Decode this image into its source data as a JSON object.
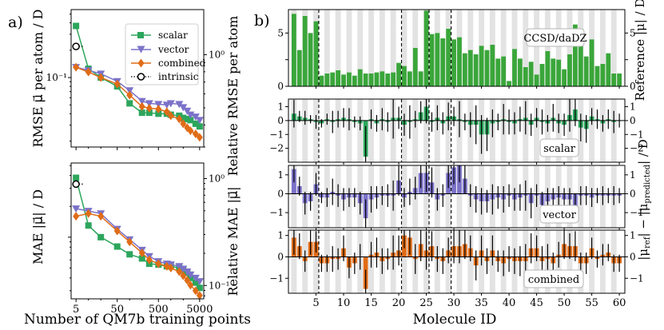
{
  "panel_labels": {
    "a": "a)",
    "b": "b)"
  },
  "colors": {
    "scalar": "#2ca65c",
    "vector": "#7b72c9",
    "combined": "#e06c17",
    "reference": "#3aa63a",
    "stripe": "#e3e3e3",
    "errbar": "#000000"
  },
  "chart_data": [
    {
      "id": "a-top",
      "type": "line",
      "title": "",
      "xlabel": "",
      "ylabel": "RMSE μ⃗ per atom / D",
      "ylabel_right": "Relative RMSE per atom",
      "x_scale": "log",
      "y_scale": "log",
      "xlim": [
        3.8,
        6300
      ],
      "ylim": [
        0.0172,
        0.56
      ],
      "right_ylim": [
        0.3,
        1.8
      ],
      "right_ticks": [
        {
          "v": 1.0,
          "label": "10⁰"
        }
      ],
      "left_ticks": [
        {
          "v": 0.1,
          "label": "10⁻¹"
        }
      ],
      "legend_position": "top-right",
      "series": [
        {
          "name": "scalar",
          "key": "scalar",
          "marker": "square",
          "x": [
            5,
            10,
            20,
            50,
            100,
            200,
            300,
            500,
            800,
            1000,
            1600,
            2000,
            2500,
            3000,
            4000,
            5000
          ],
          "y": [
            0.37,
            0.125,
            0.1,
            0.08,
            0.052,
            0.041,
            0.041,
            0.04,
            0.04,
            0.039,
            0.038,
            0.036,
            0.035,
            0.034,
            0.031,
            0.029
          ]
        },
        {
          "name": "vector",
          "key": "vector",
          "marker": "triangle-down",
          "x": [
            5,
            10,
            20,
            50,
            100,
            200,
            300,
            500,
            800,
            1000,
            1600,
            2000,
            2500,
            3000,
            4000,
            5000
          ],
          "y": [
            0.13,
            0.12,
            0.11,
            0.091,
            0.072,
            0.055,
            0.052,
            0.051,
            0.05,
            0.052,
            0.051,
            0.047,
            0.043,
            0.039,
            0.037,
            0.034
          ]
        },
        {
          "name": "combined",
          "key": "combined",
          "marker": "diamond",
          "x": [
            5,
            10,
            20,
            50,
            100,
            200,
            300,
            500,
            800,
            1000,
            1600,
            2000,
            2500,
            3000,
            4000,
            5000
          ],
          "y": [
            0.13,
            0.115,
            0.1,
            0.085,
            0.064,
            0.048,
            0.046,
            0.045,
            0.042,
            0.038,
            0.035,
            0.031,
            0.028,
            0.026,
            0.024,
            0.022
          ]
        },
        {
          "name": "intrinsic",
          "key": "intrinsic",
          "marker": "circle-open",
          "x": [
            5
          ],
          "y": [
            0.22
          ]
        }
      ]
    },
    {
      "id": "a-bottom",
      "type": "line",
      "title": "",
      "xlabel": "Number of QM7b training points",
      "ylabel": "MAE |μ⃗| / D",
      "ylabel_right": "Relative MAE |μ⃗|",
      "x_scale": "log",
      "y_scale": "log",
      "xlim": [
        3.8,
        6300
      ],
      "ylim": [
        0.025,
        0.53
      ],
      "right_ylim": [
        0.075,
        1.4
      ],
      "right_ticks": [
        {
          "v": 1.0,
          "label": "10⁰"
        },
        {
          "v": 0.1,
          "label": "10⁻¹"
        }
      ],
      "x_ticks": [
        5,
        50,
        500,
        5000
      ],
      "x_ticklabels": [
        "5",
        "50",
        "500",
        "5000"
      ],
      "series": [
        {
          "name": "scalar",
          "key": "scalar",
          "marker": "square",
          "x": [
            5,
            10,
            20,
            50,
            100,
            200,
            300,
            500,
            800,
            1000,
            1600,
            2000,
            2500,
            3000,
            4000,
            5000
          ],
          "y": [
            0.38,
            0.13,
            0.1,
            0.081,
            0.068,
            0.062,
            0.055,
            0.054,
            0.052,
            0.052,
            0.05,
            0.048,
            0.045,
            0.04,
            0.036,
            0.032
          ]
        },
        {
          "name": "vector",
          "key": "vector",
          "marker": "triangle-down",
          "x": [
            5,
            10,
            20,
            50,
            100,
            200,
            300,
            500,
            800,
            1000,
            1600,
            2000,
            2500,
            3000,
            4000,
            5000
          ],
          "y": [
            0.19,
            0.18,
            0.17,
            0.12,
            0.095,
            0.075,
            0.065,
            0.058,
            0.055,
            0.054,
            0.052,
            0.049,
            0.046,
            0.043,
            0.04,
            0.037
          ]
        },
        {
          "name": "combined",
          "key": "combined",
          "marker": "diamond",
          "x": [
            5,
            10,
            20,
            50,
            100,
            200,
            300,
            500,
            800,
            1000,
            1600,
            2000,
            2500,
            3000,
            4000,
            5000
          ],
          "y": [
            0.16,
            0.17,
            0.16,
            0.115,
            0.09,
            0.07,
            0.06,
            0.055,
            0.052,
            0.05,
            0.046,
            0.042,
            0.038,
            0.034,
            0.03,
            0.027
          ]
        },
        {
          "name": "intrinsic",
          "key": "intrinsic",
          "marker": "circle-open",
          "x": [
            5
          ],
          "y": [
            0.33
          ]
        }
      ]
    },
    {
      "id": "b-reference",
      "type": "bar",
      "annotation": "CCSD/daDZ",
      "ylabel": "Reference |μ| / D",
      "ylim": [
        0,
        7.2
      ],
      "yticks": [
        0,
        2.5,
        5
      ],
      "yticklabels": [
        "0",
        "5"
      ],
      "yticks_labeled": [
        0,
        5
      ],
      "x": "molecule 1..60",
      "values": [
        6.8,
        3.4,
        6.6,
        5.0,
        6.1,
        1.0,
        1.2,
        1.3,
        1.5,
        1.1,
        1.3,
        1.0,
        1.6,
        1.2,
        1.2,
        1.3,
        1.4,
        1.2,
        1.3,
        2.2,
        1.9,
        1.4,
        3.6,
        1.4,
        7.1,
        4.9,
        5.0,
        4.5,
        5.4,
        4.4,
        4.6,
        3.1,
        3.4,
        3.0,
        3.8,
        3.4,
        3.9,
        2.6,
        2.8,
        0.5,
        3.5,
        2.6,
        1.8,
        2.3,
        1.1,
        2.1,
        3.3,
        2.6,
        2.5,
        1.6,
        3.0,
        5.8,
        5.4,
        2.8,
        4.4,
        1.9,
        2.1,
        3.1,
        1.2,
        1.2
      ]
    },
    {
      "id": "b-scalar",
      "type": "bar",
      "annotation": "scalar",
      "ylim": [
        -3.0,
        1.55
      ],
      "yticks": [
        -2,
        -1,
        0,
        1
      ],
      "yticklabels": [
        "−2",
        "−1",
        "0",
        "1"
      ],
      "values": [
        0.5,
        0.3,
        0.2,
        0.1,
        -0.1,
        -0.2,
        0.1,
        -0.1,
        0.1,
        0.2,
        0.1,
        -0.1,
        -0.2,
        -2.6,
        0.1,
        -0.2,
        0.1,
        -0.1,
        0.2,
        0.2,
        -0.3,
        -0.1,
        0.1,
        0.6,
        1.0,
        -0.1,
        0.2,
        -0.2,
        0.3,
        0.3,
        0.1,
        -0.1,
        -0.3,
        -0.3,
        -1.0,
        -1.0,
        -0.2,
        -0.1,
        0.1,
        -0.1,
        -0.2,
        0.1,
        0.2,
        -0.3,
        0.2,
        -0.1,
        -0.2,
        0.2,
        -0.2,
        -0.3,
        0.4,
        0.8,
        -0.5,
        -0.6,
        0.3,
        0.1,
        -0.2,
        0.1,
        -0.1,
        0.0
      ],
      "errors": [
        1.0,
        0.4,
        0.5,
        0.3,
        0.5,
        0.3,
        0.4,
        0.8,
        0.6,
        0.7,
        0.8,
        0.4,
        0.5,
        2.2,
        0.7,
        0.6,
        0.8,
        0.7,
        1.5,
        0.8,
        0.8,
        1.2,
        0.6,
        0.8,
        1.2,
        0.7,
        0.9,
        0.8,
        1.0,
        0.7,
        1.3,
        0.6,
        0.9,
        1.4,
        1.4,
        1.2,
        1.0,
        0.6,
        1.1,
        0.9,
        0.8,
        0.9,
        1.2,
        0.8,
        0.7,
        0.9,
        0.6,
        1.0,
        0.7,
        0.8,
        1.2,
        1.2,
        1.0,
        1.0,
        0.6,
        0.7,
        0.6,
        0.7,
        0.8,
        0.5
      ]
    },
    {
      "id": "b-vector",
      "type": "bar",
      "annotation": "vector",
      "ylim": [
        -1.8,
        1.5
      ],
      "yticks": [
        -1,
        0,
        1
      ],
      "yticklabels": [
        "−1",
        "0",
        "1"
      ],
      "values": [
        1.3,
        0.4,
        -0.5,
        -0.4,
        0.5,
        -0.2,
        -0.2,
        0.1,
        -0.1,
        -0.3,
        -0.2,
        -0.2,
        -0.5,
        -1.3,
        -0.3,
        -0.2,
        -0.1,
        -0.1,
        -0.1,
        0.7,
        -0.2,
        0.1,
        0.3,
        1.1,
        1.1,
        0.6,
        -0.3,
        -0.1,
        1.1,
        1.4,
        1.5,
        0.8,
        -0.1,
        -0.3,
        -0.4,
        -0.4,
        -0.3,
        -0.2,
        -0.3,
        -0.1,
        -0.3,
        -0.2,
        -0.1,
        -0.5,
        -0.1,
        -0.6,
        -0.4,
        -0.3,
        -0.2,
        -0.3,
        -0.3,
        -0.7,
        -0.1,
        -0.1,
        -0.2,
        -0.1,
        -0.1,
        -0.1,
        -0.1,
        -0.1
      ],
      "errors": [
        0.7,
        0.5,
        0.6,
        0.5,
        0.6,
        0.3,
        0.5,
        0.7,
        0.6,
        0.6,
        0.5,
        0.5,
        0.6,
        1.0,
        0.7,
        0.6,
        0.5,
        0.6,
        0.8,
        0.8,
        0.5,
        0.7,
        0.6,
        0.8,
        1.0,
        0.8,
        0.6,
        0.6,
        0.8,
        0.9,
        0.9,
        0.8,
        0.6,
        0.7,
        0.7,
        0.6,
        0.8,
        0.6,
        0.7,
        0.6,
        0.6,
        0.7,
        0.8,
        0.8,
        0.6,
        0.7,
        0.7,
        0.6,
        0.6,
        0.6,
        0.6,
        0.7,
        0.5,
        0.5,
        0.5,
        0.4,
        0.5,
        0.4,
        0.5,
        0.4
      ]
    },
    {
      "id": "b-combined",
      "type": "bar",
      "annotation": "combined",
      "ylim": [
        -1.7,
        1.25
      ],
      "yticks": [
        -1,
        0,
        1
      ],
      "yticklabels": [
        "−1",
        "0",
        "1"
      ],
      "values": [
        0.9,
        0.5,
        -0.2,
        0.7,
        0.7,
        -0.3,
        -0.3,
        -0.1,
        -0.1,
        0.4,
        -0.5,
        -0.3,
        0.0,
        -1.5,
        0.1,
        0.2,
        -0.2,
        -0.1,
        0.2,
        0.3,
        1.0,
        0.9,
        -0.1,
        0.6,
        0.3,
        0.5,
        -0.1,
        -0.2,
        0.3,
        0.5,
        0.5,
        0.6,
        0.4,
        -0.4,
        0.3,
        -0.2,
        0.3,
        -0.2,
        -0.3,
        -0.1,
        -0.2,
        -0.2,
        -0.2,
        0.4,
        0.4,
        -0.2,
        -0.1,
        -0.3,
        0.1,
        0.6,
        0.5,
        0.5,
        -0.3,
        -0.3,
        0.4,
        -0.1,
        0.1,
        0.2,
        -0.3,
        -0.3
      ],
      "errors": [
        0.8,
        0.6,
        0.5,
        0.6,
        0.5,
        0.4,
        0.4,
        0.6,
        0.5,
        0.6,
        0.5,
        0.5,
        0.6,
        0.9,
        0.6,
        0.7,
        0.6,
        0.5,
        0.8,
        0.7,
        0.6,
        0.8,
        0.7,
        0.8,
        0.9,
        0.7,
        0.6,
        0.6,
        0.6,
        0.8,
        0.8,
        0.7,
        0.6,
        0.7,
        0.7,
        0.6,
        0.7,
        0.5,
        0.6,
        0.6,
        0.6,
        0.7,
        0.8,
        0.7,
        0.6,
        0.7,
        0.7,
        0.5,
        0.6,
        0.7,
        0.6,
        0.7,
        0.5,
        0.5,
        0.5,
        0.4,
        0.5,
        0.4,
        0.4,
        0.4
      ]
    }
  ],
  "panel_b": {
    "xlabel": "Molecule ID",
    "ylabel_right": "|μref| − |μpredicted| / D",
    "xlim": [
      0,
      61
    ],
    "xticks": [
      5,
      10,
      15,
      20,
      25,
      30,
      35,
      40,
      45,
      50,
      55,
      60
    ],
    "dashed_lines": [
      5.5,
      20.5,
      25.5,
      29.5
    ],
    "molecule_count": 60
  }
}
